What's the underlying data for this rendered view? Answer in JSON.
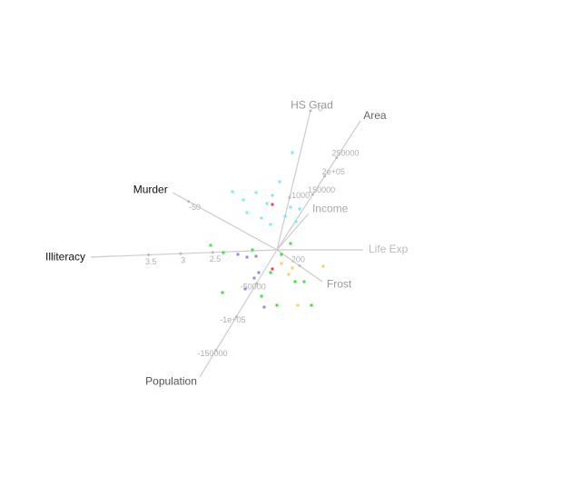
{
  "chart_data": {
    "type": "scatter",
    "xlim": [
      -3.05,
      3.14
    ],
    "ylim": [
      -2.61,
      2.75
    ],
    "axes": [
      {
        "label": "Area",
        "color": "#666666",
        "to": [
          0.92,
          1.42
        ],
        "lim": [
          0,
          350000
        ],
        "ticks": [
          150000,
          {
            "value": 200000,
            "label": "2e+05"
          },
          250000
        ]
      },
      {
        "label": "Population",
        "color": "#555555",
        "to": [
          -0.85,
          -1.4
        ],
        "lim": [
          0,
          -190000
        ],
        "ticks": [
          -150000,
          {
            "value": -100000,
            "label": "-1e+05"
          },
          -50000
        ]
      },
      {
        "label": "HS Grad",
        "color": "#999999",
        "to": [
          0.37,
          1.53
        ],
        "lim": [
          -1600,
          0
        ],
        "ticks": [
          -1000,
          0
        ]
      },
      {
        "label": "Illiteracy",
        "color": "#111111",
        "to": [
          -2.05,
          -0.08
        ],
        "lim": [
          1.5,
          4.4
        ],
        "ticks": [
          2.5,
          3,
          3.5
        ]
      },
      {
        "label": "Murder",
        "color": "#111111",
        "to": [
          -1.15,
          0.63
        ],
        "lim": [
          5,
          -60
        ],
        "ticks": [
          -50
        ]
      },
      {
        "label": "Income",
        "color": "#aaaaaa",
        "to": [
          0.35,
          0.4
        ],
        "lim": [
          0,
          1
        ],
        "ticks": []
      },
      {
        "label": "Life Exp",
        "color": "#bbbbbb",
        "to": [
          0.95,
          0.0
        ],
        "lim": [
          0,
          1
        ],
        "ticks": []
      },
      {
        "label": "Frost",
        "color": "#999999",
        "to": [
          0.5,
          -0.35
        ],
        "lim": [
          0,
          400
        ],
        "ticks": [
          200
        ]
      }
    ],
    "series": [
      {
        "color": "#77eeee",
        "x": [
          -0.49,
          -0.23,
          -0.05,
          -0.37,
          -0.11,
          -0.33,
          0.17,
          0.03,
          -0.07,
          0.15,
          0.25,
          0.09,
          0.21,
          -0.17
        ],
        "y": [
          0.64,
          0.63,
          0.6,
          0.55,
          0.51,
          0.41,
          1.07,
          0.75,
          0.28,
          0.47,
          0.45,
          0.37,
          0.31,
          0.35
        ]
      },
      {
        "color": "#44dd44",
        "x": [
          -0.73,
          -0.59,
          -0.27,
          0.2,
          0.3,
          0,
          0.38,
          -0.6,
          -0.17,
          -0.07,
          0.15,
          0.05
        ],
        "y": [
          0.05,
          -0.03,
          0,
          -0.35,
          -0.35,
          -0.61,
          -0.61,
          -0.47,
          -0.51,
          -0.25,
          0.07,
          -0.05
        ]
      },
      {
        "color": "#9988ee",
        "x": [
          -0.33,
          -0.23,
          -0.25,
          -0.14,
          -0.2,
          -0.35,
          -0.43
        ],
        "y": [
          -0.08,
          -0.07,
          -0.31,
          -0.63,
          -0.25,
          -0.43,
          -0.05
        ]
      },
      {
        "color": "#ffcc66",
        "x": [
          0.17,
          0.23,
          0.51,
          0.13,
          0.05
        ],
        "y": [
          -0.2,
          -0.61,
          -0.18,
          -0.27,
          -0.15
        ]
      },
      {
        "color": "#ee4444",
        "x": [
          -0.05,
          -0.05
        ],
        "y": [
          0.5,
          -0.21
        ]
      }
    ]
  }
}
